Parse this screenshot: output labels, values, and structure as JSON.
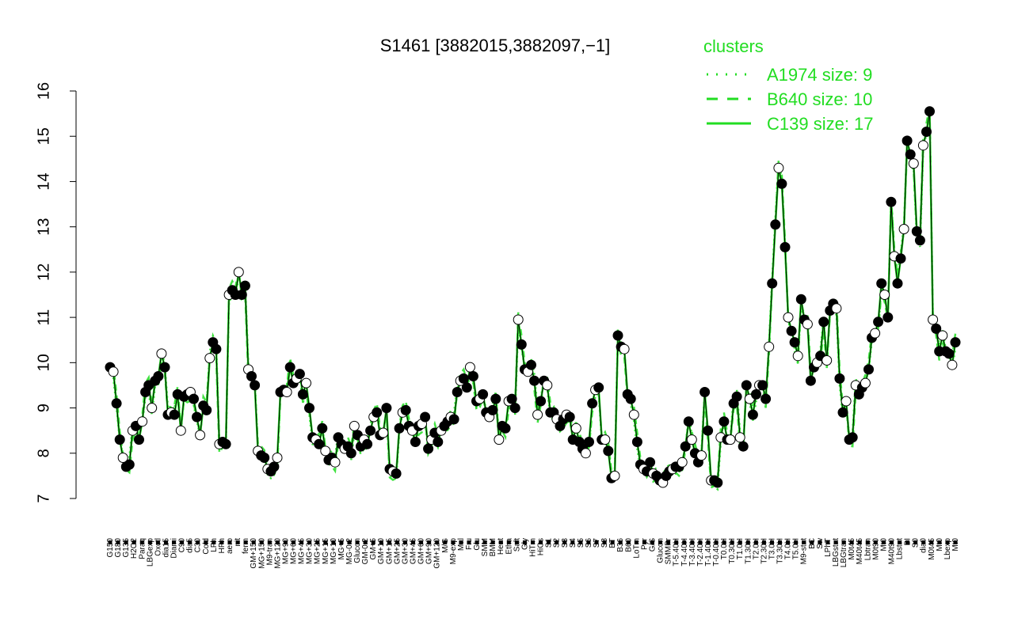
{
  "chart_data": {
    "type": "line",
    "title": "S1461 [3882015,3882097,−1]",
    "xlabel": "",
    "ylabel": "",
    "ylim": [
      7,
      16
    ],
    "yticks": [
      7,
      8,
      9,
      10,
      11,
      12,
      13,
      14,
      15,
      16
    ],
    "legend": {
      "title": "clusters",
      "position": "top-right",
      "entries": [
        {
          "label": "A1974 size: 9",
          "style": "dotted"
        },
        {
          "label": "B640 size: 10",
          "style": "dashed"
        },
        {
          "label": "C139 size: 17",
          "style": "solid"
        }
      ]
    },
    "colors": {
      "line": "#22dd22",
      "light_line": "#7fe07f",
      "point_dark": "#000000",
      "point_light": "#ffffff"
    },
    "x_tick_labels": [
      "G150",
      "G180",
      "G135",
      "H2O2",
      "Paraq",
      "LBGexp",
      "Oxctl",
      "dia15",
      "Diami",
      "C90",
      "dia5",
      "C30",
      "Cold",
      "LPh",
      "HPh",
      "aero",
      "nit",
      "ferm",
      "GM+150",
      "MG+150",
      "M9-tran",
      "MG+120",
      "MG+90",
      "MG+60",
      "MG+45",
      "MG+30",
      "MG+25",
      "MG+15",
      "MG+10",
      "MG+5",
      "MG-0.2",
      "Glucon",
      "GM-0.2",
      "GM+5",
      "GM+10",
      "GM+15",
      "GM+25",
      "GM+30",
      "GM+45",
      "GM+60",
      "GM+90",
      "GM+120",
      "M/G",
      "M9-exp",
      "Mal",
      "Fru",
      "Glu",
      "SMM",
      "BMM",
      "Heat",
      "Etha",
      "Salt",
      "Gly",
      "HiTm",
      "HiOs",
      "S1",
      "S2",
      "S3",
      "S4",
      "S5",
      "S6",
      "S7",
      "S8",
      "BT",
      "B36",
      "B60",
      "LoTm",
      "Pyr",
      "G/S",
      "Glucon",
      "SMMPr",
      "T-5.40H",
      "T-4.40H",
      "T-3.40H",
      "T-2.40H",
      "T-1.40H",
      "T-0.40H",
      "T0.0H",
      "T0.30H",
      "T1.0H",
      "T1.30H",
      "T2.0H",
      "T2.30H",
      "T3.0H",
      "T3.30H",
      "T4.0H",
      "T5.0H",
      "M9-stat",
      "BC",
      "Sw",
      "LPhT",
      "LBGstat",
      "LBGtran",
      "M0t45",
      "M40t45",
      "Lbtran",
      "M0t90",
      "Mt0",
      "M40t90",
      "Lbstat",
      "BI",
      "S0",
      "dia0",
      "M0t45",
      "Mt0",
      "Lbexp",
      "Mt0"
    ],
    "series": [
      {
        "name": "",
        "values": [
          9.9,
          9.8,
          9.1,
          8.3,
          7.9,
          7.7,
          7.75,
          8.5,
          8.6,
          8.3,
          8.7,
          9.35,
          9.5,
          9.0,
          9.6,
          9.7,
          10.2,
          9.9,
          8.85,
          8.9,
          8.85,
          9.3,
          8.5,
          9.25,
          9.3,
          9.35,
          9.2,
          8.8,
          8.4,
          9.05,
          8.95,
          10.1,
          10.45,
          10.3,
          8.2,
          8.25,
          8.2,
          11.5,
          11.6,
          11.5,
          12.0,
          11.5,
          11.7,
          9.85,
          9.7,
          9.5,
          8.05,
          7.95,
          7.9,
          7.65,
          7.6,
          7.7,
          7.9,
          9.35,
          9.4,
          9.35,
          9.9,
          9.55,
          9.65,
          9.75,
          9.3,
          9.55,
          9.0,
          8.35,
          8.3,
          8.2,
          8.55,
          8.05,
          7.85,
          7.9,
          7.8,
          8.35,
          8.2,
          8.1,
          8.15,
          8.0,
          8.6,
          8.4,
          8.15,
          8.3,
          8.2,
          8.5,
          8.8,
          8.9,
          8.4,
          8.45,
          9.0,
          7.65,
          7.6,
          7.55,
          8.55,
          8.9,
          8.95,
          8.6,
          8.5,
          8.25,
          8.6,
          8.65,
          8.8,
          8.1,
          8.3,
          8.45,
          8.25,
          8.5,
          8.6,
          8.7,
          8.8,
          8.75,
          9.35,
          9.6,
          9.65,
          9.45,
          9.9,
          9.7,
          9.15,
          9.2,
          9.3,
          8.9,
          8.8,
          8.95,
          9.2,
          8.3,
          8.6,
          8.55,
          9.15,
          9.2,
          9.0,
          10.95,
          10.4,
          9.85,
          9.8,
          9.95,
          9.6,
          8.85,
          9.15,
          9.6,
          9.5,
          8.9,
          8.9,
          8.75,
          8.6,
          8.75,
          8.85,
          8.8,
          8.3,
          8.55,
          8.25,
          8.1,
          8.0,
          8.25,
          9.1,
          9.4,
          9.45,
          8.3,
          8.3,
          8.05,
          7.45,
          7.5,
          10.6,
          10.35,
          10.3,
          9.3,
          9.2,
          8.85,
          8.25,
          7.75,
          7.65,
          7.6,
          7.8,
          7.55,
          7.5,
          7.4,
          7.35,
          7.5,
          7.6,
          7.65,
          7.7,
          7.7,
          7.8,
          8.15,
          8.7,
          8.3,
          8.0,
          7.8,
          7.95,
          9.35,
          8.5,
          7.4,
          7.4,
          7.35,
          8.35,
          8.7,
          8.3,
          8.3,
          9.1,
          9.25,
          8.35,
          8.15,
          9.5,
          9.2,
          8.85,
          9.3,
          9.5,
          9.5,
          9.2,
          10.35,
          11.75,
          13.05,
          14.3,
          13.95,
          12.55,
          11.0,
          10.7,
          10.45,
          10.15,
          11.4,
          10.95,
          10.85,
          9.6,
          9.9,
          10.0,
          10.15,
          10.9,
          10.05,
          11.15,
          11.3,
          11.2,
          9.65,
          8.9,
          9.15,
          8.3,
          8.35,
          9.5,
          9.3,
          9.45,
          9.55,
          9.85,
          10.55,
          10.65,
          10.9,
          11.75,
          11.5,
          11.0,
          13.55,
          12.35,
          11.75,
          12.3,
          12.95,
          14.9,
          14.6,
          14.4,
          12.9,
          12.7,
          14.8,
          15.1,
          15.55,
          10.95,
          10.75,
          10.25,
          10.6,
          10.25,
          10.2,
          9.95,
          10.45
        ]
      }
    ]
  }
}
